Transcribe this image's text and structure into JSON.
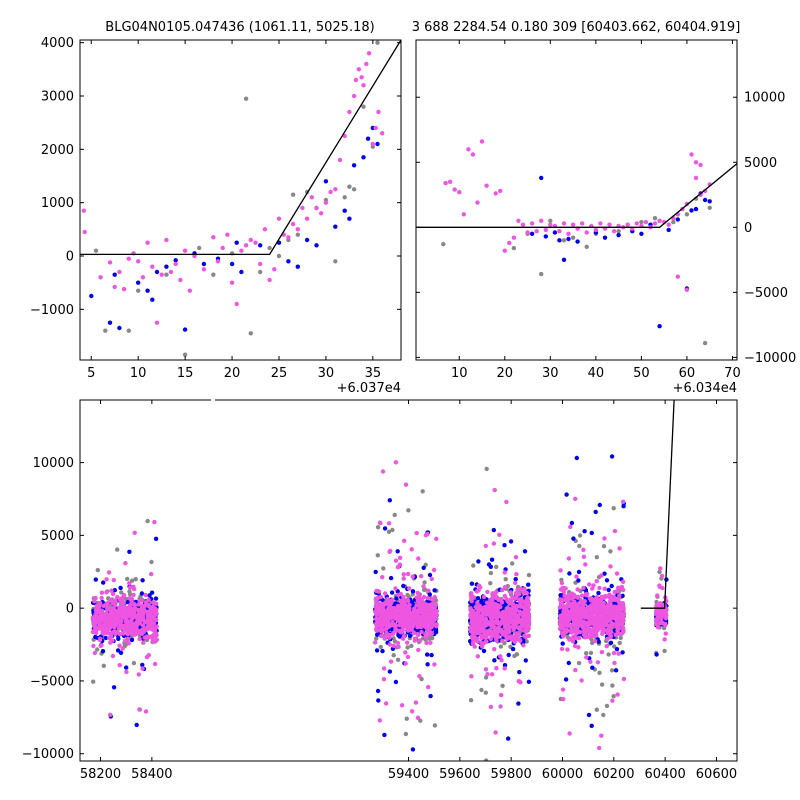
{
  "titles": {
    "left": "BLG04N0105.047436 (1061.11, 5025.18)",
    "right": "3 688 2284.54 0.180 309 [60403.662, 60404.919]"
  },
  "colors": {
    "blue": "#0000ee",
    "magenta": "#ee55e0",
    "gray": "#888888",
    "model": "#000000"
  },
  "chart_data": [
    {
      "type": "scatter",
      "panel": "zoom-left",
      "offset_label": "+6.037e4",
      "xlim": [
        3.8,
        38.0
      ],
      "ylim": [
        -1950,
        4050
      ],
      "xticks": [
        5,
        10,
        15,
        20,
        25,
        30,
        35
      ],
      "yticks": [
        -1000,
        0,
        1000,
        2000,
        3000,
        4000
      ],
      "yticks_labels": [
        "−1000",
        "0",
        "1000",
        "2000",
        "3000",
        "4000"
      ],
      "model_line": [
        [
          3.8,
          30
        ],
        [
          24,
          30
        ],
        [
          38,
          4050
        ]
      ],
      "series": [
        {
          "color": "magenta",
          "points": [
            [
              4.2,
              850
            ],
            [
              4.3,
              450
            ],
            [
              6,
              -400
            ],
            [
              7,
              -120
            ],
            [
              7.5,
              -580
            ],
            [
              8,
              -300
            ],
            [
              8.5,
              -620
            ],
            [
              9,
              -50
            ],
            [
              9.5,
              50
            ],
            [
              10,
              -100
            ],
            [
              10.5,
              -400
            ],
            [
              11,
              250
            ],
            [
              11.5,
              -200
            ],
            [
              12,
              -1250
            ],
            [
              12.5,
              -350
            ],
            [
              13,
              300
            ],
            [
              13.5,
              -300
            ],
            [
              14,
              -150
            ],
            [
              14.5,
              -450
            ],
            [
              15,
              100
            ],
            [
              15.5,
              -650
            ],
            [
              16,
              0
            ],
            [
              17,
              -250
            ],
            [
              18,
              350
            ],
            [
              18.5,
              -100
            ],
            [
              19,
              150
            ],
            [
              19.5,
              400
            ],
            [
              20,
              -500
            ],
            [
              20.5,
              -900
            ],
            [
              21,
              100
            ],
            [
              21.5,
              200
            ],
            [
              22,
              300
            ],
            [
              22.5,
              250
            ],
            [
              23,
              -150
            ],
            [
              23.5,
              500
            ],
            [
              24,
              -450
            ],
            [
              24.5,
              -250
            ],
            [
              25,
              700
            ],
            [
              25.5,
              400
            ],
            [
              26,
              350
            ],
            [
              26.5,
              600
            ],
            [
              27,
              500
            ],
            [
              27.5,
              900
            ],
            [
              28,
              700
            ],
            [
              28.5,
              1100
            ],
            [
              29,
              900
            ],
            [
              29.5,
              800
            ],
            [
              30,
              1000
            ],
            [
              30.5,
              1200
            ],
            [
              31,
              1250
            ],
            [
              31.5,
              1800
            ],
            [
              32,
              2250
            ],
            [
              32.5,
              2700
            ],
            [
              33,
              3000
            ],
            [
              33.2,
              3300
            ],
            [
              33.5,
              3500
            ],
            [
              33.8,
              3350
            ],
            [
              34,
              3200
            ],
            [
              34.3,
              3600
            ],
            [
              34.6,
              3800
            ],
            [
              35,
              2100
            ],
            [
              35.3,
              2400
            ],
            [
              35.6,
              2700
            ],
            [
              36,
              2300
            ]
          ]
        },
        {
          "color": "gray",
          "points": [
            [
              5.5,
              100
            ],
            [
              6.5,
              -1400
            ],
            [
              9,
              -1400
            ],
            [
              10,
              -650
            ],
            [
              13,
              -350
            ],
            [
              15,
              -1850
            ],
            [
              16.5,
              150
            ],
            [
              18,
              -350
            ],
            [
              20,
              50
            ],
            [
              21.5,
              2950
            ],
            [
              22,
              -1450
            ],
            [
              23,
              -300
            ],
            [
              24,
              150
            ],
            [
              25,
              0
            ],
            [
              26,
              300
            ],
            [
              26.5,
              1150
            ],
            [
              27,
              400
            ],
            [
              28,
              1200
            ],
            [
              29,
              900
            ],
            [
              30,
              1050
            ],
            [
              31,
              -100
            ],
            [
              32,
              1100
            ],
            [
              32.5,
              1300
            ],
            [
              33,
              1250
            ],
            [
              34,
              2800
            ],
            [
              35,
              2050
            ],
            [
              35.5,
              4000
            ]
          ]
        },
        {
          "color": "blue",
          "points": [
            [
              5,
              -750
            ],
            [
              7,
              -1250
            ],
            [
              7.5,
              -350
            ],
            [
              8,
              -1350
            ],
            [
              10,
              -500
            ],
            [
              11,
              -650
            ],
            [
              11.5,
              -820
            ],
            [
              12,
              -300
            ],
            [
              13,
              -200
            ],
            [
              14,
              -80
            ],
            [
              15,
              -1380
            ],
            [
              16,
              50
            ],
            [
              17,
              -150
            ],
            [
              18.5,
              -50
            ],
            [
              20,
              -150
            ],
            [
              20.5,
              250
            ],
            [
              21,
              -300
            ],
            [
              23,
              200
            ],
            [
              25,
              250
            ],
            [
              26,
              -100
            ],
            [
              27,
              -200
            ],
            [
              28,
              300
            ],
            [
              29,
              200
            ],
            [
              30,
              1400
            ],
            [
              31,
              550
            ],
            [
              32,
              850
            ],
            [
              32.5,
              700
            ],
            [
              33,
              1700
            ],
            [
              34,
              1850
            ],
            [
              34.5,
              2200
            ],
            [
              35,
              2400
            ],
            [
              35.5,
              2100
            ]
          ]
        }
      ]
    },
    {
      "type": "scatter",
      "panel": "zoom-right",
      "offset_label": "+6.034e4",
      "xlim": [
        0.5,
        71.0
      ],
      "ylim": [
        -10200,
        14400
      ],
      "xticks": [
        10,
        20,
        30,
        40,
        50,
        60,
        70
      ],
      "yticks": [
        -10000,
        -5000,
        0,
        5000,
        10000
      ],
      "yticks_labels": [
        "−10000",
        "−5000",
        "0",
        "5000",
        "10000"
      ],
      "model_line": [
        [
          0.5,
          0
        ],
        [
          54,
          0
        ],
        [
          71,
          4900
        ]
      ],
      "series": [
        {
          "color": "magenta",
          "points": [
            [
              7,
              3400
            ],
            [
              8,
              3500
            ],
            [
              9,
              2900
            ],
            [
              10,
              2700
            ],
            [
              11,
              1000
            ],
            [
              12,
              6000
            ],
            [
              13,
              5600
            ],
            [
              14,
              1900
            ],
            [
              15,
              6600
            ],
            [
              16,
              3200
            ],
            [
              18,
              2600
            ],
            [
              19,
              2800
            ],
            [
              20,
              -1800
            ],
            [
              21,
              -1200
            ],
            [
              22,
              -800
            ],
            [
              23,
              500
            ],
            [
              24,
              200
            ],
            [
              25,
              -400
            ],
            [
              26,
              300
            ],
            [
              27,
              -300
            ],
            [
              28,
              500
            ],
            [
              29,
              -200
            ],
            [
              30,
              200
            ],
            [
              31,
              100
            ],
            [
              32,
              -300
            ],
            [
              33,
              300
            ],
            [
              34,
              -500
            ],
            [
              35,
              200
            ],
            [
              36,
              -100
            ],
            [
              37,
              300
            ],
            [
              38,
              -400
            ],
            [
              39,
              100
            ],
            [
              40,
              -200
            ],
            [
              41,
              300
            ],
            [
              42,
              -100
            ],
            [
              43,
              200
            ],
            [
              44,
              -300
            ],
            [
              45,
              100
            ],
            [
              46,
              0
            ],
            [
              47,
              200
            ],
            [
              48,
              -100
            ],
            [
              49,
              300
            ],
            [
              50,
              100
            ],
            [
              51,
              400
            ],
            [
              52,
              0
            ],
            [
              53,
              300
            ],
            [
              54,
              500
            ],
            [
              55,
              400
            ],
            [
              56,
              200
            ],
            [
              57,
              700
            ],
            [
              58,
              1000
            ],
            [
              59,
              1400
            ],
            [
              60,
              1800
            ],
            [
              61,
              5600
            ],
            [
              62,
              5000
            ],
            [
              63,
              2500
            ],
            [
              64,
              2800
            ],
            [
              65,
              3300
            ],
            [
              58,
              -3800
            ],
            [
              60,
              -4800
            ],
            [
              63,
              4800
            ],
            [
              62,
              3800
            ]
          ]
        },
        {
          "color": "gray",
          "points": [
            [
              6.5,
              -1300
            ],
            [
              22,
              -1600
            ],
            [
              25,
              -500
            ],
            [
              28,
              -3600
            ],
            [
              30,
              500
            ],
            [
              35,
              -800
            ],
            [
              40,
              -500
            ],
            [
              45,
              -300
            ],
            [
              50,
              400
            ],
            [
              53,
              700
            ],
            [
              57,
              400
            ],
            [
              60,
              1000
            ],
            [
              62,
              2200
            ],
            [
              64,
              -8900
            ],
            [
              65,
              1500
            ],
            [
              33,
              -1000
            ],
            [
              38,
              -1500
            ]
          ]
        },
        {
          "color": "blue",
          "points": [
            [
              26,
              -500
            ],
            [
              28,
              3800
            ],
            [
              29,
              -700
            ],
            [
              31,
              -400
            ],
            [
              32,
              -1000
            ],
            [
              33,
              -2500
            ],
            [
              34,
              -900
            ],
            [
              36,
              -1100
            ],
            [
              40,
              -400
            ],
            [
              42,
              -800
            ],
            [
              45,
              -600
            ],
            [
              48,
              -300
            ],
            [
              50,
              -500
            ],
            [
              52,
              200
            ],
            [
              54,
              -7600
            ],
            [
              56,
              -200
            ],
            [
              58,
              600
            ],
            [
              60,
              -4700
            ],
            [
              61,
              1300
            ],
            [
              62,
              1400
            ],
            [
              63,
              2600
            ],
            [
              64,
              2100
            ],
            [
              65,
              2000
            ]
          ]
        }
      ]
    },
    {
      "type": "scatter",
      "panel": "full-light-curve",
      "xlim": [
        58120,
        60680
      ],
      "ylim": [
        -10500,
        14300
      ],
      "xticks": [
        58200,
        58400,
        59400,
        59600,
        59800,
        60000,
        60200,
        60400,
        60600
      ],
      "yticks": [
        -10000,
        -5000,
        0,
        5000,
        10000
      ],
      "yticks_labels": [
        "−10000",
        "−5000",
        "0",
        "5000",
        "10000"
      ],
      "seasons": [
        {
          "x0": 58170,
          "x1": 58420,
          "mean": -700,
          "sd": 700,
          "n": 420,
          "amp": 7000
        },
        {
          "x0": 59270,
          "x1": 59510,
          "mean": -600,
          "sd": 700,
          "n": 520,
          "amp": 10000
        },
        {
          "x0": 59640,
          "x1": 59870,
          "mean": -700,
          "sd": 800,
          "n": 500,
          "amp": 10000
        },
        {
          "x0": 59990,
          "x1": 60240,
          "mean": -500,
          "sd": 750,
          "n": 540,
          "amp": 10000
        },
        {
          "x0": 60365,
          "x1": 60405,
          "mean": -300,
          "sd": 400,
          "n": 80,
          "amp": 5000
        }
      ],
      "model_line": [
        [
          60305,
          0
        ],
        [
          60398,
          0
        ],
        [
          60435,
          14300
        ]
      ]
    }
  ]
}
